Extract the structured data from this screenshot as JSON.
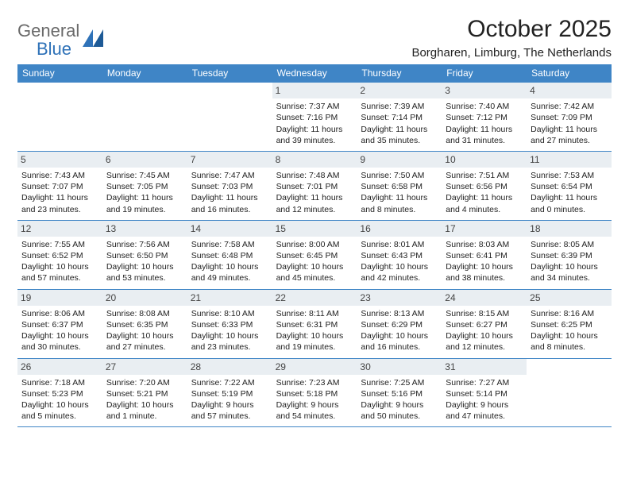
{
  "brand": {
    "word1": "General",
    "word2": "Blue"
  },
  "title": "October 2025",
  "location": "Borgharen, Limburg, The Netherlands",
  "colors": {
    "header_bg": "#3f85c6",
    "header_text": "#ffffff",
    "daynum_bg": "#e9eef2",
    "rule": "#3f85c6",
    "text": "#222222",
    "logo_gray": "#6a6a6a",
    "logo_blue": "#2f72b8",
    "page_bg": "#ffffff"
  },
  "daysOfWeek": [
    "Sunday",
    "Monday",
    "Tuesday",
    "Wednesday",
    "Thursday",
    "Friday",
    "Saturday"
  ],
  "weeks": [
    [
      {
        "n": "",
        "sunrise": "",
        "sunset": "",
        "daylight1": "",
        "daylight2": ""
      },
      {
        "n": "",
        "sunrise": "",
        "sunset": "",
        "daylight1": "",
        "daylight2": ""
      },
      {
        "n": "",
        "sunrise": "",
        "sunset": "",
        "daylight1": "",
        "daylight2": ""
      },
      {
        "n": "1",
        "sunrise": "Sunrise: 7:37 AM",
        "sunset": "Sunset: 7:16 PM",
        "daylight1": "Daylight: 11 hours",
        "daylight2": "and 39 minutes."
      },
      {
        "n": "2",
        "sunrise": "Sunrise: 7:39 AM",
        "sunset": "Sunset: 7:14 PM",
        "daylight1": "Daylight: 11 hours",
        "daylight2": "and 35 minutes."
      },
      {
        "n": "3",
        "sunrise": "Sunrise: 7:40 AM",
        "sunset": "Sunset: 7:12 PM",
        "daylight1": "Daylight: 11 hours",
        "daylight2": "and 31 minutes."
      },
      {
        "n": "4",
        "sunrise": "Sunrise: 7:42 AM",
        "sunset": "Sunset: 7:09 PM",
        "daylight1": "Daylight: 11 hours",
        "daylight2": "and 27 minutes."
      }
    ],
    [
      {
        "n": "5",
        "sunrise": "Sunrise: 7:43 AM",
        "sunset": "Sunset: 7:07 PM",
        "daylight1": "Daylight: 11 hours",
        "daylight2": "and 23 minutes."
      },
      {
        "n": "6",
        "sunrise": "Sunrise: 7:45 AM",
        "sunset": "Sunset: 7:05 PM",
        "daylight1": "Daylight: 11 hours",
        "daylight2": "and 19 minutes."
      },
      {
        "n": "7",
        "sunrise": "Sunrise: 7:47 AM",
        "sunset": "Sunset: 7:03 PM",
        "daylight1": "Daylight: 11 hours",
        "daylight2": "and 16 minutes."
      },
      {
        "n": "8",
        "sunrise": "Sunrise: 7:48 AM",
        "sunset": "Sunset: 7:01 PM",
        "daylight1": "Daylight: 11 hours",
        "daylight2": "and 12 minutes."
      },
      {
        "n": "9",
        "sunrise": "Sunrise: 7:50 AM",
        "sunset": "Sunset: 6:58 PM",
        "daylight1": "Daylight: 11 hours",
        "daylight2": "and 8 minutes."
      },
      {
        "n": "10",
        "sunrise": "Sunrise: 7:51 AM",
        "sunset": "Sunset: 6:56 PM",
        "daylight1": "Daylight: 11 hours",
        "daylight2": "and 4 minutes."
      },
      {
        "n": "11",
        "sunrise": "Sunrise: 7:53 AM",
        "sunset": "Sunset: 6:54 PM",
        "daylight1": "Daylight: 11 hours",
        "daylight2": "and 0 minutes."
      }
    ],
    [
      {
        "n": "12",
        "sunrise": "Sunrise: 7:55 AM",
        "sunset": "Sunset: 6:52 PM",
        "daylight1": "Daylight: 10 hours",
        "daylight2": "and 57 minutes."
      },
      {
        "n": "13",
        "sunrise": "Sunrise: 7:56 AM",
        "sunset": "Sunset: 6:50 PM",
        "daylight1": "Daylight: 10 hours",
        "daylight2": "and 53 minutes."
      },
      {
        "n": "14",
        "sunrise": "Sunrise: 7:58 AM",
        "sunset": "Sunset: 6:48 PM",
        "daylight1": "Daylight: 10 hours",
        "daylight2": "and 49 minutes."
      },
      {
        "n": "15",
        "sunrise": "Sunrise: 8:00 AM",
        "sunset": "Sunset: 6:45 PM",
        "daylight1": "Daylight: 10 hours",
        "daylight2": "and 45 minutes."
      },
      {
        "n": "16",
        "sunrise": "Sunrise: 8:01 AM",
        "sunset": "Sunset: 6:43 PM",
        "daylight1": "Daylight: 10 hours",
        "daylight2": "and 42 minutes."
      },
      {
        "n": "17",
        "sunrise": "Sunrise: 8:03 AM",
        "sunset": "Sunset: 6:41 PM",
        "daylight1": "Daylight: 10 hours",
        "daylight2": "and 38 minutes."
      },
      {
        "n": "18",
        "sunrise": "Sunrise: 8:05 AM",
        "sunset": "Sunset: 6:39 PM",
        "daylight1": "Daylight: 10 hours",
        "daylight2": "and 34 minutes."
      }
    ],
    [
      {
        "n": "19",
        "sunrise": "Sunrise: 8:06 AM",
        "sunset": "Sunset: 6:37 PM",
        "daylight1": "Daylight: 10 hours",
        "daylight2": "and 30 minutes."
      },
      {
        "n": "20",
        "sunrise": "Sunrise: 8:08 AM",
        "sunset": "Sunset: 6:35 PM",
        "daylight1": "Daylight: 10 hours",
        "daylight2": "and 27 minutes."
      },
      {
        "n": "21",
        "sunrise": "Sunrise: 8:10 AM",
        "sunset": "Sunset: 6:33 PM",
        "daylight1": "Daylight: 10 hours",
        "daylight2": "and 23 minutes."
      },
      {
        "n": "22",
        "sunrise": "Sunrise: 8:11 AM",
        "sunset": "Sunset: 6:31 PM",
        "daylight1": "Daylight: 10 hours",
        "daylight2": "and 19 minutes."
      },
      {
        "n": "23",
        "sunrise": "Sunrise: 8:13 AM",
        "sunset": "Sunset: 6:29 PM",
        "daylight1": "Daylight: 10 hours",
        "daylight2": "and 16 minutes."
      },
      {
        "n": "24",
        "sunrise": "Sunrise: 8:15 AM",
        "sunset": "Sunset: 6:27 PM",
        "daylight1": "Daylight: 10 hours",
        "daylight2": "and 12 minutes."
      },
      {
        "n": "25",
        "sunrise": "Sunrise: 8:16 AM",
        "sunset": "Sunset: 6:25 PM",
        "daylight1": "Daylight: 10 hours",
        "daylight2": "and 8 minutes."
      }
    ],
    [
      {
        "n": "26",
        "sunrise": "Sunrise: 7:18 AM",
        "sunset": "Sunset: 5:23 PM",
        "daylight1": "Daylight: 10 hours",
        "daylight2": "and 5 minutes."
      },
      {
        "n": "27",
        "sunrise": "Sunrise: 7:20 AM",
        "sunset": "Sunset: 5:21 PM",
        "daylight1": "Daylight: 10 hours",
        "daylight2": "and 1 minute."
      },
      {
        "n": "28",
        "sunrise": "Sunrise: 7:22 AM",
        "sunset": "Sunset: 5:19 PM",
        "daylight1": "Daylight: 9 hours",
        "daylight2": "and 57 minutes."
      },
      {
        "n": "29",
        "sunrise": "Sunrise: 7:23 AM",
        "sunset": "Sunset: 5:18 PM",
        "daylight1": "Daylight: 9 hours",
        "daylight2": "and 54 minutes."
      },
      {
        "n": "30",
        "sunrise": "Sunrise: 7:25 AM",
        "sunset": "Sunset: 5:16 PM",
        "daylight1": "Daylight: 9 hours",
        "daylight2": "and 50 minutes."
      },
      {
        "n": "31",
        "sunrise": "Sunrise: 7:27 AM",
        "sunset": "Sunset: 5:14 PM",
        "daylight1": "Daylight: 9 hours",
        "daylight2": "and 47 minutes."
      },
      {
        "n": "",
        "sunrise": "",
        "sunset": "",
        "daylight1": "",
        "daylight2": ""
      }
    ]
  ]
}
